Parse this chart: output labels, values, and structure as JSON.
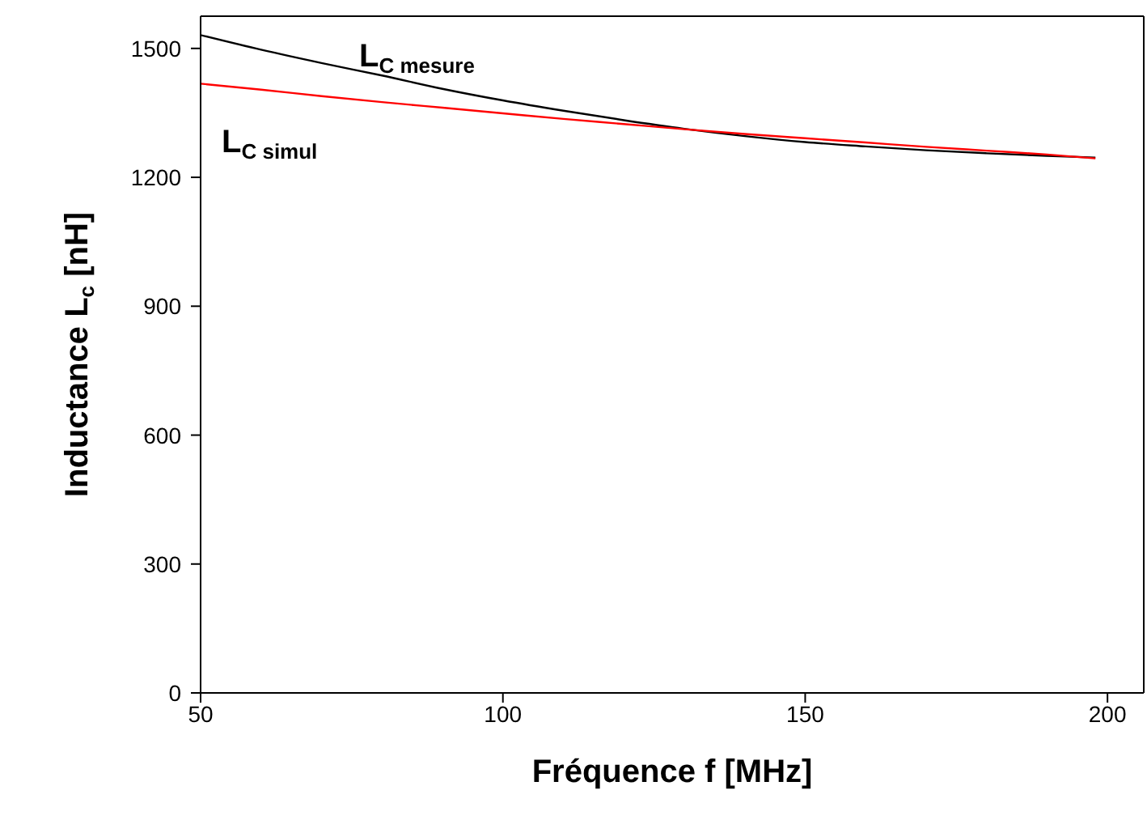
{
  "chart_data": {
    "type": "line",
    "xlabel": "Fréquence f [MHz]",
    "ylabel": "Inductance L$_{c}$ [nH]",
    "xlim": [
      50,
      206
    ],
    "xticks": [
      50,
      100,
      150,
      200
    ],
    "ylim": [
      0,
      1575
    ],
    "yticks": [
      0,
      300,
      600,
      900,
      1200,
      1500
    ],
    "grid": false,
    "legend": false,
    "marker": "none",
    "series": [
      {
        "color": "#000000",
        "x": [
          50,
          60,
          70,
          80,
          90,
          100,
          110,
          120,
          130,
          140,
          150,
          160,
          170,
          180,
          190,
          198
        ],
        "values": [
          1531,
          1497,
          1466,
          1437,
          1406,
          1379,
          1355,
          1333,
          1313,
          1296,
          1282,
          1272,
          1263,
          1256,
          1250,
          1246
        ]
      },
      {
        "color": "#ff0000",
        "x": [
          50,
          60,
          70,
          80,
          90,
          100,
          110,
          120,
          130,
          140,
          150,
          160,
          170,
          180,
          190,
          198
        ],
        "values": [
          1418,
          1404,
          1389,
          1375,
          1362,
          1349,
          1336,
          1324,
          1312,
          1301,
          1291,
          1281,
          1271,
          1262,
          1253,
          1244
        ]
      }
    ],
    "annotations": [
      "L$_{C mesure}$",
      "L$_{C simul}$"
    ]
  }
}
